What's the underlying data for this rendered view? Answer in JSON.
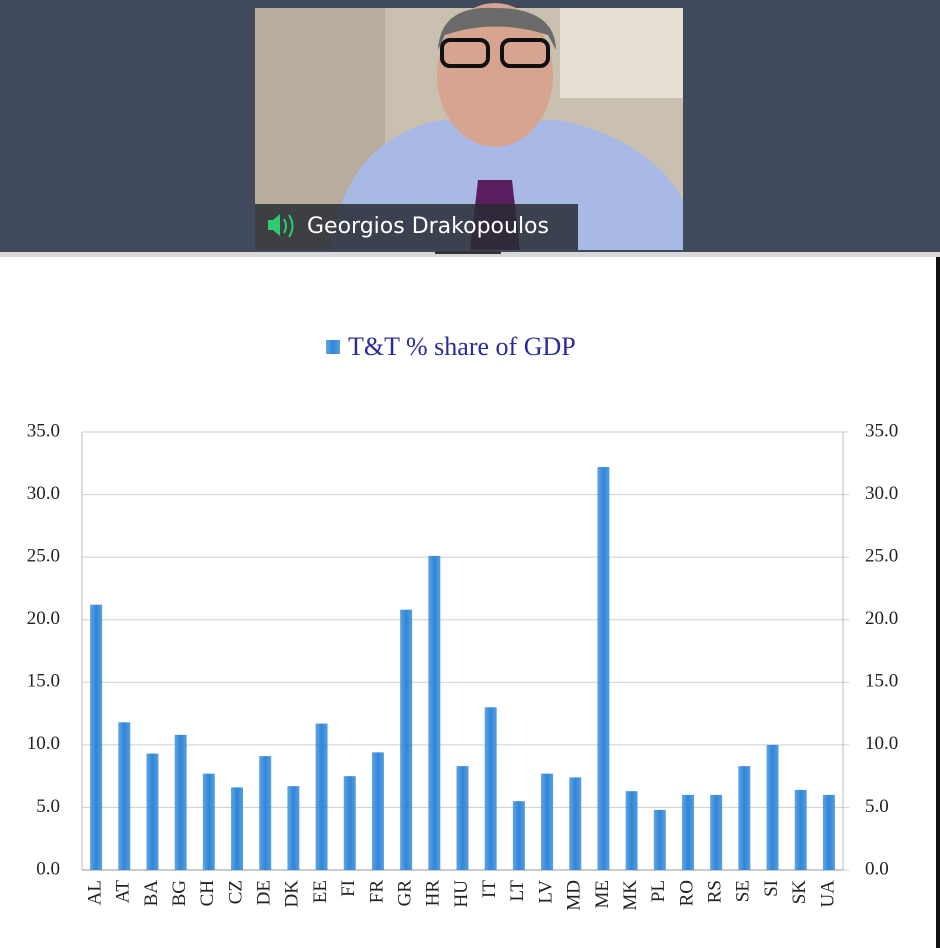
{
  "participant": {
    "name": "Georgios Drakopoulos"
  },
  "chart_data": {
    "type": "bar",
    "categories": [
      "AL",
      "AT",
      "BA",
      "BG",
      "CH",
      "CZ",
      "DE",
      "DK",
      "EE",
      "FI",
      "FR",
      "GR",
      "HR",
      "HU",
      "IT",
      "LT",
      "LV",
      "MD",
      "ME",
      "MK",
      "PL",
      "RO",
      "RS",
      "SE",
      "SI",
      "SK",
      "UA"
    ],
    "series": [
      {
        "name": "T&T % share of GDP",
        "color": "#2f86d8",
        "values": [
          21.2,
          11.8,
          9.3,
          10.8,
          7.7,
          6.6,
          9.1,
          6.7,
          11.7,
          7.5,
          9.4,
          20.8,
          25.1,
          8.3,
          13.0,
          5.5,
          7.7,
          7.4,
          32.2,
          6.3,
          4.8,
          6.0,
          6.0,
          8.3,
          10.0,
          6.4,
          6.0
        ]
      }
    ],
    "ylim": [
      0,
      35
    ],
    "yticks": [
      {
        "value": 0,
        "label": "0.0"
      },
      {
        "value": 5,
        "label": "5.0"
      },
      {
        "value": 10,
        "label": "10.0"
      },
      {
        "value": 15,
        "label": "15.0"
      },
      {
        "value": 20,
        "label": "20.0"
      },
      {
        "value": 25,
        "label": "25.0"
      },
      {
        "value": 30,
        "label": "30.0"
      },
      {
        "value": 35,
        "label": "35.0"
      }
    ],
    "y2lim": [
      0,
      35
    ],
    "y2ticks": [
      {
        "value": 0,
        "label": "0.0"
      },
      {
        "value": 5,
        "label": "5.0"
      },
      {
        "value": 10,
        "label": "10.0"
      },
      {
        "value": 15,
        "label": "15.0"
      },
      {
        "value": 20,
        "label": "20.0"
      },
      {
        "value": 25,
        "label": "25.0"
      },
      {
        "value": 30,
        "label": "30.0"
      },
      {
        "value": 35,
        "label": "35.0"
      }
    ],
    "grid": true,
    "legend": "top"
  }
}
